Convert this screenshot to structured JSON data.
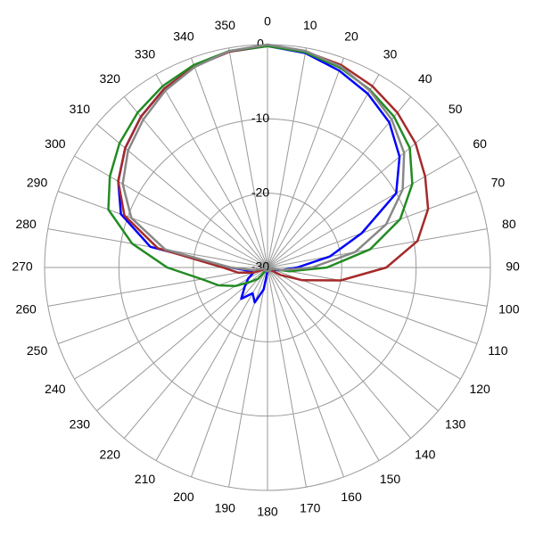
{
  "chart_data": {
    "type": "polar",
    "angles": [
      0,
      10,
      20,
      30,
      40,
      50,
      60,
      70,
      80,
      90,
      100,
      110,
      120,
      130,
      140,
      150,
      160,
      170,
      180,
      190,
      200,
      210,
      220,
      230,
      240,
      250,
      260,
      270,
      280,
      290,
      300,
      310,
      320,
      330,
      340,
      350
    ],
    "rlim": [
      -30,
      0
    ],
    "rticks": [
      -30,
      -20,
      -10,
      0
    ],
    "grid": true,
    "series": [
      {
        "color": "#0000ff",
        "values": [
          -0.2,
          -0.7,
          -1.8,
          -3,
          -4.5,
          -6.8,
          -10,
          -16.5,
          -21.5,
          -26,
          -28,
          -29,
          -29.5,
          -29.5,
          -29.5,
          -29.5,
          -29.5,
          -29.5,
          -29.5,
          -27,
          -25,
          -26,
          -24.5,
          -26,
          -27,
          -28,
          -27.5,
          -25,
          -14,
          -9,
          -6.8,
          -5,
          -3.5,
          -2.2,
          -1.2,
          -0.5
        ]
      },
      {
        "color": "#a52a2a",
        "values": [
          -0.2,
          -0.5,
          -1,
          -1.8,
          -2.8,
          -4,
          -5.5,
          -7,
          -9.5,
          -14,
          -20,
          -25,
          -28,
          -29.5,
          -29.5,
          -29.5,
          -29.5,
          -29.5,
          -29.5,
          -29.5,
          -29.5,
          -29.5,
          -29.5,
          -29.5,
          -29.5,
          -28,
          -26,
          -24,
          -15,
          -9.5,
          -6.8,
          -5,
          -3.5,
          -2.2,
          -1.2,
          -0.5
        ]
      },
      {
        "color": "#228b22",
        "values": [
          -0.2,
          -0.6,
          -1.4,
          -2.4,
          -3.5,
          -5,
          -7.5,
          -11,
          -16,
          -22,
          -27,
          -29.5,
          -29.5,
          -29.5,
          -29.5,
          -29.5,
          -29.5,
          -29.5,
          -29.5,
          -29.5,
          -29.5,
          -29.5,
          -28,
          -27,
          -25,
          -23,
          -21,
          -16.5,
          -11.5,
          -7.2,
          -5.5,
          -4,
          -2.8,
          -1.8,
          -1,
          -0.4
        ]
      },
      {
        "color": "#888888",
        "values": [
          0,
          -0.4,
          -1.2,
          -2.5,
          -4,
          -6,
          -9,
          -13,
          -18,
          -24,
          -28,
          -29.5,
          -29.5,
          -29.5,
          -29.5,
          -29.5,
          -29.5,
          -29.5,
          -29.5,
          -29.5,
          -29.5,
          -29.5,
          -29.5,
          -29.5,
          -29.5,
          -29.5,
          -28,
          -25,
          -16,
          -10.5,
          -7.5,
          -5.5,
          -4,
          -2.5,
          -1.3,
          -0.4
        ]
      }
    ]
  }
}
